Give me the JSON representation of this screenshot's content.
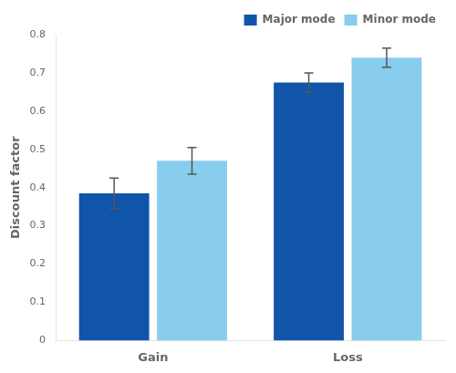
{
  "chart_data": {
    "type": "bar",
    "categories": [
      "Gain",
      "Loss"
    ],
    "series": [
      {
        "name": "Major mode",
        "color": "#1155aa",
        "values": [
          0.385,
          0.675
        ],
        "errors": [
          0.04,
          0.025
        ]
      },
      {
        "name": "Minor mode",
        "color": "#88ccee",
        "values": [
          0.47,
          0.74
        ],
        "errors": [
          0.035,
          0.025
        ]
      }
    ],
    "ylabel": "Discount factor",
    "ylim": [
      0,
      0.8
    ],
    "yticks": [
      0,
      0.1,
      0.2,
      0.3,
      0.4,
      0.5,
      0.6,
      0.7,
      0.8
    ],
    "legend": "upper right",
    "grid": false
  }
}
